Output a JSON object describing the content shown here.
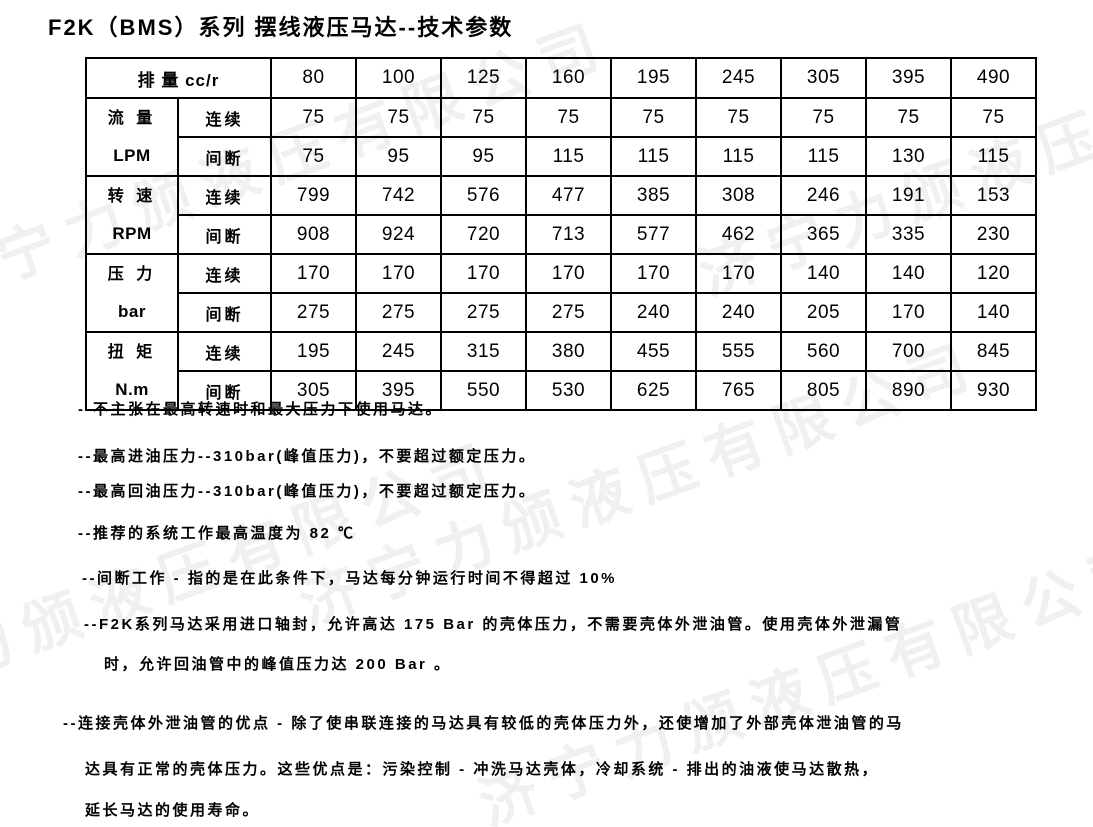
{
  "page": {
    "title": "F2K（BMS）系列 摆线液压马达--技术参数"
  },
  "colors": {
    "background": "#ffffff",
    "text": "#000000",
    "table_border": "#000000",
    "watermark": "#f0f0f0"
  },
  "watermark": {
    "text": "济宁力颁液压有限公司"
  },
  "table": {
    "header_label": "排 量 cc/r",
    "displacements": [
      "80",
      "100",
      "125",
      "160",
      "195",
      "245",
      "305",
      "395",
      "490"
    ],
    "mode_labels": {
      "continuous": "连续",
      "intermittent": "间断"
    },
    "groups": [
      {
        "param": "流 量",
        "unit": "LPM",
        "continuous": [
          "75",
          "75",
          "75",
          "75",
          "75",
          "75",
          "75",
          "75",
          "75"
        ],
        "intermittent": [
          "75",
          "95",
          "95",
          "115",
          "115",
          "115",
          "115",
          "130",
          "115"
        ]
      },
      {
        "param": "转 速",
        "unit": "RPM",
        "continuous": [
          "799",
          "742",
          "576",
          "477",
          "385",
          "308",
          "246",
          "191",
          "153"
        ],
        "intermittent": [
          "908",
          "924",
          "720",
          "713",
          "577",
          "462",
          "365",
          "335",
          "230"
        ]
      },
      {
        "param": "压 力",
        "unit": "bar",
        "continuous": [
          "170",
          "170",
          "170",
          "170",
          "170",
          "170",
          "140",
          "140",
          "120"
        ],
        "intermittent": [
          "275",
          "275",
          "275",
          "275",
          "240",
          "240",
          "205",
          "170",
          "140"
        ]
      },
      {
        "param": "扭 矩",
        "unit": "N.m",
        "continuous": [
          "195",
          "245",
          "315",
          "380",
          "455",
          "555",
          "560",
          "700",
          "845"
        ],
        "intermittent": [
          "305",
          "395",
          "550",
          "530",
          "625",
          "765",
          "805",
          "890",
          "930"
        ]
      }
    ]
  },
  "notes": [
    "--不主张在最高转速时和最大压力下使用马达。",
    "--最高进油压力--310bar(峰值压力)，不要超过额定压力。",
    "--最高回油压力--310bar(峰值压力)，不要超过额定压力。",
    "--推荐的系统工作最高温度为 82 ℃",
    "--间断工作 - 指的是在此条件下，马达每分钟运行时间不得超过 10%",
    "--F2K系列马达采用进口轴封，允许高达 175 Bar 的壳体压力，不需要壳体外泄油管。使用壳体外泄漏管",
    "时，允许回油管中的峰值压力达 200 Bar 。",
    "--连接壳体外泄油管的优点 - 除了使串联连接的马达具有较低的壳体压力外，还使增加了外部壳体泄油管的马",
    "达具有正常的壳体压力。这些优点是：污染控制 - 冲洗马达壳体，冷却系统 - 排出的油液使马达散热，",
    "延长马达的使用寿命。"
  ]
}
